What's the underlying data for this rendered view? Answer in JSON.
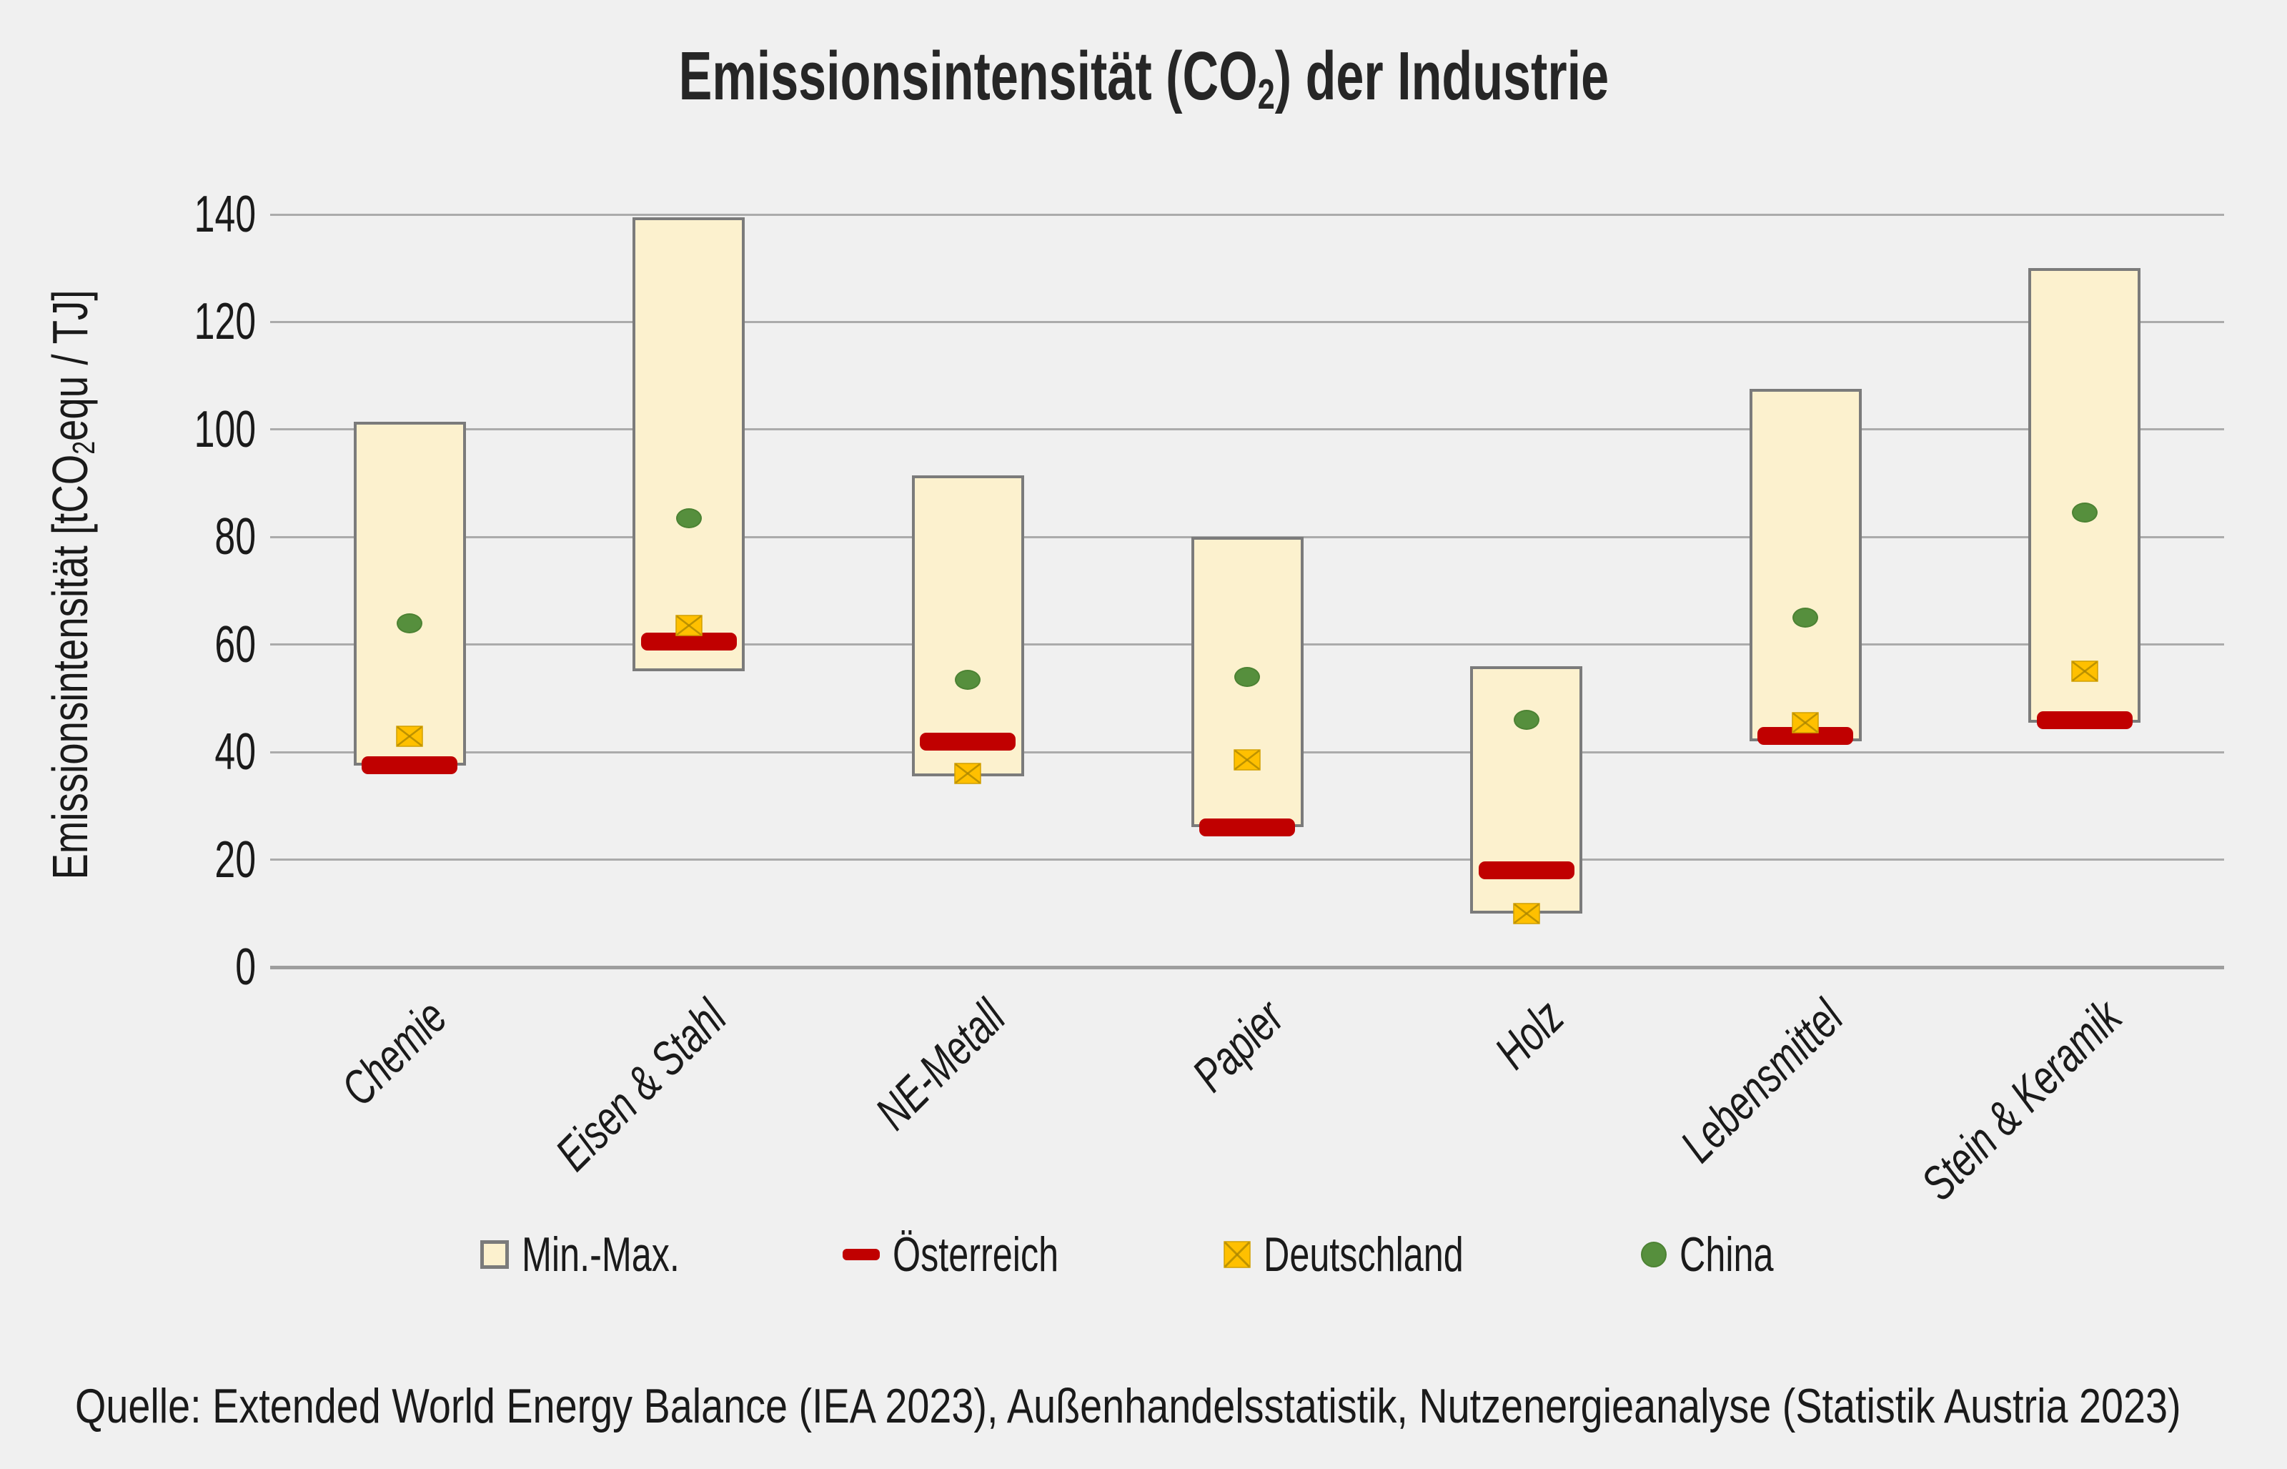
{
  "title": {
    "part1": "Emissionsintensität (CO",
    "sub": "2",
    "part2": ") der Industrie"
  },
  "y_axis": {
    "label_part1": "Emissionsintensität [tCO",
    "label_sub": "2",
    "label_part2": "equ / TJ]"
  },
  "legend": [
    {
      "label": "Min.-Max.",
      "swatch": "box"
    },
    {
      "label": "Österreich",
      "swatch": "dash"
    },
    {
      "label": "Deutschland",
      "swatch": "x-square"
    },
    {
      "label": "China",
      "swatch": "dot"
    }
  ],
  "source": "Quelle: Extended World Energy Balance (IEA 2023), Außenhandelsstatistik, Nutzenergieanalyse (Statistik Austria 2023)",
  "colors": {
    "background": "#F0F0F0",
    "range_fill": "#FCF1CE",
    "range_border": "#7B7B7B",
    "austria_red": "#C00000",
    "germany_yellow": "#FFC000",
    "germany_x_stroke": "#A98500",
    "china_green": "#568F3D",
    "gridline": "#ABABAB",
    "axis_line": "#9E9E9E"
  },
  "chart_data": {
    "type": "bar",
    "subtype": "min-max-range-bars-with-country-markers",
    "title": "Emissionsintensität (CO2) der Industrie",
    "ylabel": "Emissionsintensität [tCO2equ / TJ]",
    "xlabel": "",
    "ylim": [
      0,
      140
    ],
    "yticks": [
      0,
      20,
      40,
      60,
      80,
      100,
      120,
      140
    ],
    "grid": true,
    "legend_position": "bottom",
    "categories": [
      "Chemie",
      "Eisen & Stahl",
      "NE-Metall",
      "Papier",
      "Holz",
      "Lebensmittel",
      "Stein & Keramik"
    ],
    "series": [
      {
        "name": "Min.-Max.",
        "type": "range",
        "min": [
          37.5,
          55,
          35.5,
          26,
          10,
          42,
          45.5
        ],
        "max": [
          101.5,
          139.5,
          91.5,
          80,
          56,
          107.5,
          130
        ]
      },
      {
        "name": "Österreich",
        "type": "dash-marker",
        "values": [
          37.5,
          60.5,
          42,
          26,
          18,
          43,
          46
        ]
      },
      {
        "name": "Deutschland",
        "type": "x-square-marker",
        "values": [
          43,
          63.5,
          36,
          38.5,
          10,
          45.5,
          55
        ]
      },
      {
        "name": "China",
        "type": "dot-marker",
        "values": [
          64,
          83.5,
          53.5,
          54,
          46,
          65,
          84.5
        ]
      }
    ]
  }
}
